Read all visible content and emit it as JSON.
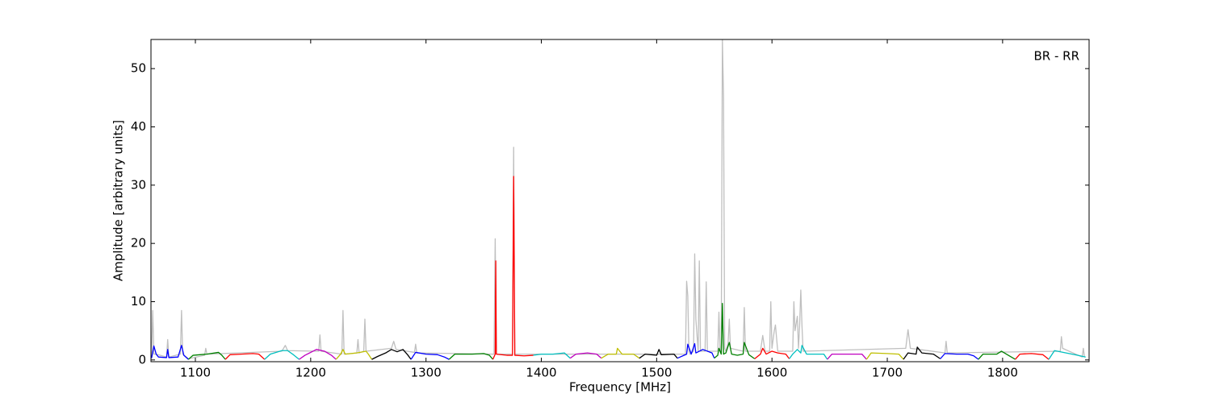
{
  "chart_data": {
    "type": "line",
    "annotation": "BR - RR",
    "xlabel": "Frequency [MHz]",
    "ylabel": "Amplitude [arbitrary units]",
    "xlim": [
      1061.5,
      1875
    ],
    "ylim": [
      -0.3,
      55
    ],
    "xticks": [
      1100,
      1200,
      1300,
      1400,
      1500,
      1600,
      1700,
      1800
    ],
    "yticks": [
      0,
      10,
      20,
      30,
      40,
      50
    ],
    "series": [
      {
        "color": "#bfbfbf",
        "x": [
          1062,
          1063,
          1064,
          1066,
          1075,
          1076,
          1077,
          1087,
          1088,
          1089,
          1094,
          1108,
          1109,
          1110,
          1175,
          1178,
          1180,
          1207,
          1208,
          1209,
          1227,
          1228,
          1229,
          1240,
          1241,
          1242,
          1246,
          1247,
          1248,
          1270,
          1272,
          1274,
          1290,
          1291,
          1292,
          1359,
          1360,
          1361,
          1375,
          1376,
          1377,
          1525,
          1526,
          1527,
          1528,
          1529,
          1532,
          1533,
          1534,
          1536,
          1537,
          1538,
          1542,
          1543,
          1544,
          1553,
          1554,
          1555,
          1556,
          1557,
          1558,
          1559,
          1560,
          1562,
          1563,
          1564,
          1575,
          1576,
          1577,
          1590,
          1592,
          1594,
          1598,
          1599,
          1600,
          1602,
          1603,
          1605,
          1618,
          1619,
          1620,
          1622,
          1623,
          1624,
          1625,
          1626,
          1627,
          1716,
          1718,
          1720,
          1750,
          1751,
          1752,
          1850,
          1851,
          1852,
          1869,
          1870,
          1871
        ],
        "values": [
          0.5,
          8.5,
          1,
          1,
          0.5,
          3.5,
          0.5,
          1,
          8.5,
          1,
          0.2,
          0.8,
          2,
          1,
          1.5,
          2.5,
          1.6,
          1.5,
          4.3,
          1.5,
          1,
          8.5,
          1,
          1.2,
          3.5,
          1.2,
          1.5,
          7,
          1.5,
          2,
          3.2,
          1.8,
          1.3,
          2.7,
          1.2,
          1,
          20.8,
          1,
          1,
          36.5,
          1,
          1,
          13.5,
          11,
          1.5,
          1,
          1.5,
          18.2,
          7,
          1.5,
          17,
          1.5,
          1.5,
          13.4,
          1.5,
          1.5,
          8.2,
          1.5,
          1.5,
          55,
          45,
          2,
          1.5,
          3,
          7,
          2,
          1.5,
          9,
          1.5,
          1.5,
          4.2,
          1.5,
          1.5,
          10,
          2,
          5,
          6,
          1.5,
          1.5,
          10,
          5,
          7.5,
          2,
          6,
          12,
          6,
          1.5,
          2,
          5.2,
          2,
          1.2,
          3.2,
          1.2,
          1.5,
          4,
          2,
          0.5,
          2,
          0.5
        ]
      },
      {
        "color": "#0000ff",
        "x": [
          1062,
          1064,
          1066,
          1068,
          1075,
          1076,
          1077,
          1085,
          1088,
          1090,
          1094
        ],
        "values": [
          0.3,
          2.4,
          1.0,
          0.5,
          0.4,
          1.8,
          0.4,
          0.5,
          2.5,
          0.8,
          0.1
        ]
      },
      {
        "color": "#008000",
        "x": [
          1094,
          1098,
          1110,
          1120,
          1123,
          1126
        ],
        "values": [
          0.1,
          0.8,
          1.0,
          1.3,
          0.8,
          0.1
        ]
      },
      {
        "color": "#ff0000",
        "x": [
          1126,
          1130,
          1140,
          1150,
          1155,
          1160
        ],
        "values": [
          0.1,
          0.9,
          1.0,
          1.1,
          1.0,
          0.1
        ]
      },
      {
        "color": "#00bfbf",
        "x": [
          1160,
          1165,
          1175,
          1180,
          1185,
          1190
        ],
        "values": [
          0.1,
          1.0,
          1.6,
          1.6,
          0.9,
          0.1
        ]
      },
      {
        "color": "#bf00bf",
        "x": [
          1190,
          1195,
          1205,
          1212,
          1218,
          1222
        ],
        "values": [
          0.1,
          0.8,
          1.8,
          1.5,
          0.8,
          0.1
        ]
      },
      {
        "color": "#bfbf00",
        "x": [
          1222,
          1226,
          1228,
          1230,
          1240,
          1248,
          1250,
          1253
        ],
        "values": [
          0.1,
          1.0,
          1.8,
          1.0,
          1.2,
          1.5,
          1.0,
          0.1
        ]
      },
      {
        "color": "#000000",
        "x": [
          1253,
          1258,
          1265,
          1270,
          1275,
          1280,
          1284,
          1287
        ],
        "values": [
          0.1,
          0.6,
          1.2,
          1.8,
          1.4,
          1.8,
          0.9,
          0.1
        ]
      },
      {
        "color": "#0000ff",
        "x": [
          1287,
          1291,
          1300,
          1310,
          1316,
          1320
        ],
        "values": [
          0.1,
          1.3,
          1.0,
          0.9,
          0.5,
          0.1
        ]
      },
      {
        "color": "#008000",
        "x": [
          1320,
          1325,
          1340,
          1350,
          1355,
          1358
        ],
        "values": [
          0.1,
          1.0,
          1.0,
          1.1,
          0.8,
          0.1
        ]
      },
      {
        "color": "#ff0000",
        "x": [
          1358,
          1360,
          1360.5,
          1361,
          1370,
          1375,
          1376,
          1377,
          1385,
          1393
        ],
        "values": [
          0.1,
          1.0,
          17,
          1.0,
          0.8,
          0.8,
          31.5,
          0.8,
          0.7,
          0.8
        ]
      },
      {
        "color": "#00bfbf",
        "x": [
          1393,
          1400,
          1410,
          1420,
          1425
        ],
        "values": [
          0.8,
          1.0,
          1.0,
          1.2,
          0.3
        ]
      },
      {
        "color": "#bf00bf",
        "x": [
          1425,
          1430,
          1440,
          1448,
          1452
        ],
        "values": [
          0.3,
          1.0,
          1.2,
          1.0,
          0.3
        ]
      },
      {
        "color": "#bfbf00",
        "x": [
          1452,
          1458,
          1465,
          1466,
          1470,
          1480,
          1485
        ],
        "values": [
          0.3,
          1.0,
          1.0,
          2.0,
          1.0,
          1.0,
          0.3
        ]
      },
      {
        "color": "#000000",
        "x": [
          1485,
          1490,
          1500,
          1502,
          1504,
          1515,
          1518
        ],
        "values": [
          0.3,
          1.0,
          0.8,
          1.8,
          0.9,
          1.0,
          0.3
        ]
      },
      {
        "color": "#0000ff",
        "x": [
          1518,
          1526,
          1527,
          1530,
          1533,
          1534,
          1540,
          1548,
          1550
        ],
        "values": [
          0.3,
          1.0,
          2.7,
          1.0,
          2.8,
          1.2,
          1.8,
          1.2,
          0.3
        ]
      },
      {
        "color": "#008000",
        "x": [
          1550,
          1553,
          1554,
          1556,
          1557,
          1558,
          1560,
          1563,
          1565,
          1570,
          1575,
          1576,
          1580,
          1585
        ],
        "values": [
          0.3,
          0.8,
          2.0,
          1.0,
          9.7,
          1.0,
          1.2,
          3.0,
          1.0,
          0.8,
          1.0,
          3.0,
          0.9,
          0.2
        ]
      },
      {
        "color": "#ff0000",
        "x": [
          1585,
          1590,
          1592,
          1595,
          1600,
          1605,
          1612,
          1615
        ],
        "values": [
          0.2,
          1.0,
          2.0,
          1.0,
          1.5,
          1.2,
          1.0,
          0.2
        ]
      },
      {
        "color": "#00bfbf",
        "x": [
          1615,
          1618,
          1622,
          1625,
          1626,
          1630,
          1645,
          1648
        ],
        "values": [
          0.2,
          1.0,
          1.8,
          1.2,
          2.5,
          1.0,
          1.0,
          0.1
        ]
      },
      {
        "color": "#bf00bf",
        "x": [
          1648,
          1652,
          1670,
          1678,
          1682
        ],
        "values": [
          0.1,
          1.0,
          1.0,
          1.0,
          0.1
        ]
      },
      {
        "color": "#bfbf00",
        "x": [
          1682,
          1686,
          1700,
          1710,
          1714
        ],
        "values": [
          0.1,
          1.2,
          1.1,
          1.0,
          0.1
        ]
      },
      {
        "color": "#000000",
        "x": [
          1714,
          1718,
          1725,
          1726,
          1730,
          1740,
          1746
        ],
        "values": [
          0.1,
          1.2,
          1.0,
          2.2,
          1.2,
          1.0,
          0.2
        ]
      },
      {
        "color": "#0000ff",
        "x": [
          1746,
          1750,
          1760,
          1770,
          1775,
          1779
        ],
        "values": [
          0.2,
          1.1,
          1.0,
          1.0,
          0.7,
          0.1
        ]
      },
      {
        "color": "#008000",
        "x": [
          1779,
          1783,
          1795,
          1799,
          1805,
          1811
        ],
        "values": [
          0.1,
          1.0,
          1.0,
          1.5,
          0.8,
          0.1
        ]
      },
      {
        "color": "#ff0000",
        "x": [
          1811,
          1815,
          1825,
          1835,
          1840
        ],
        "values": [
          0.1,
          1.0,
          1.1,
          0.9,
          0.1
        ]
      },
      {
        "color": "#00bfbf",
        "x": [
          1840,
          1845,
          1855,
          1865,
          1872
        ],
        "values": [
          0.1,
          1.6,
          1.2,
          0.8,
          0.5
        ]
      }
    ]
  }
}
